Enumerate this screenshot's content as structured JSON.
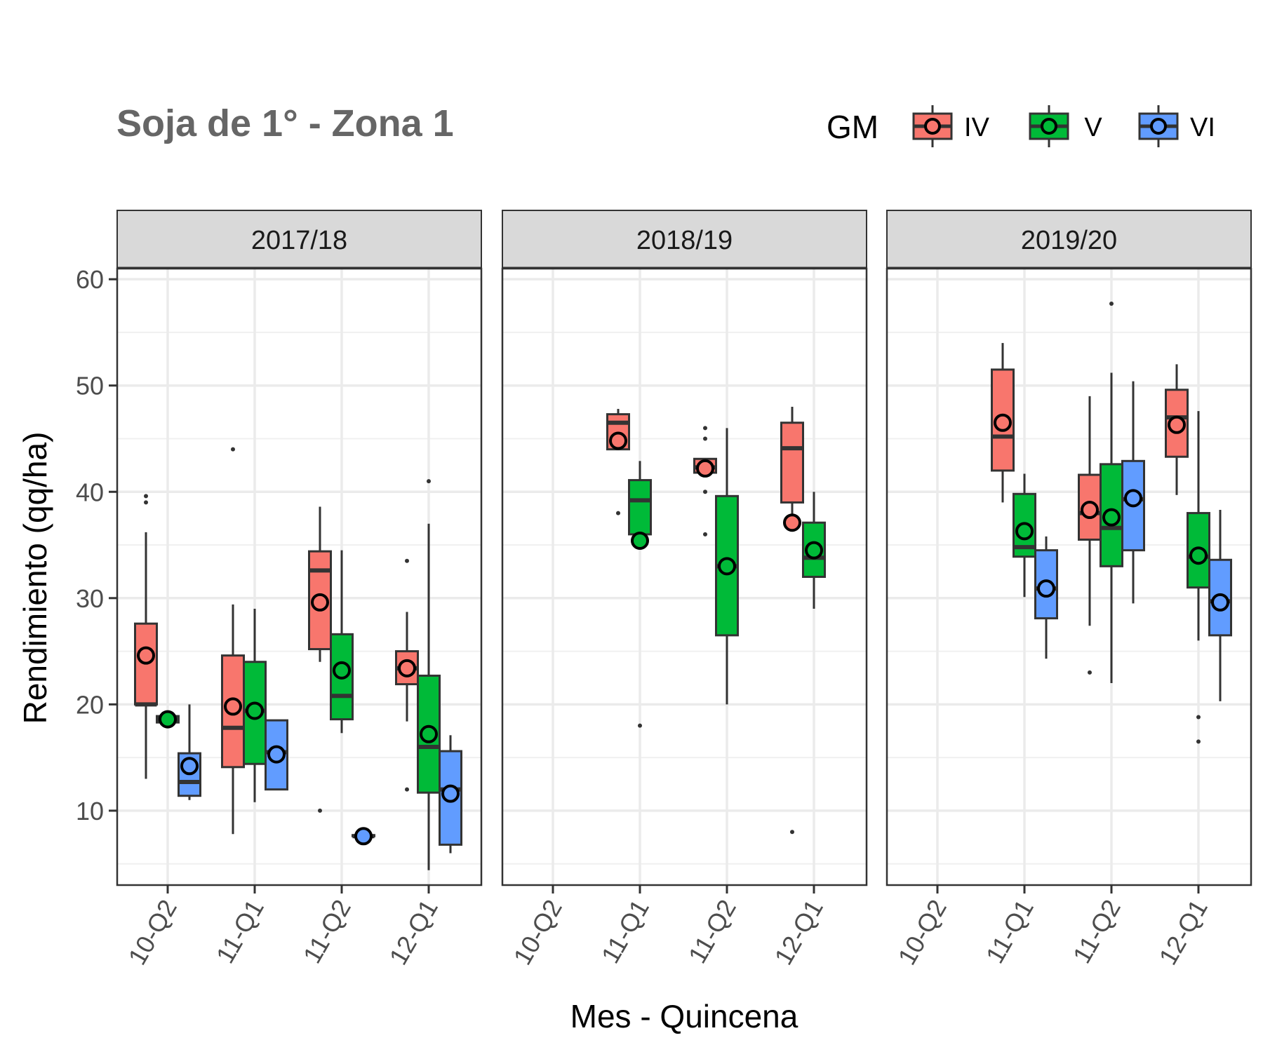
{
  "chart_data": {
    "type": "box",
    "title": "Soja de 1° - Zona 1",
    "xlabel": "Mes - Quincena",
    "ylabel": "Rendimiento (qq/ha)",
    "ylim": [
      3,
      61
    ],
    "yticks": [
      10,
      20,
      30,
      40,
      50,
      60
    ],
    "grid": true,
    "categories": [
      "10-Q2",
      "11-Q1",
      "11-Q2",
      "12-Q1"
    ],
    "legend": {
      "title": "GM",
      "position": "top-right",
      "items": [
        {
          "label": "IV",
          "color": "#F8766D"
        },
        {
          "label": "V",
          "color": "#00BA38"
        },
        {
          "label": "VI",
          "color": "#619CFF"
        }
      ]
    },
    "panels": [
      {
        "label": "2017/18",
        "boxes": [
          {
            "cat": "10-Q2",
            "gm": "IV",
            "min": 13,
            "q1": 20,
            "median": 20,
            "q3": 27.6,
            "max": 36.2,
            "mean": 24.6,
            "outliers": [
              39,
              39.6
            ]
          },
          {
            "cat": "10-Q2",
            "gm": "V",
            "min": 18.3,
            "q1": 18.3,
            "median": 18.6,
            "q3": 18.9,
            "max": 18.9,
            "mean": 18.6,
            "outliers": []
          },
          {
            "cat": "10-Q2",
            "gm": "VI",
            "min": 11,
            "q1": 11.4,
            "median": 12.7,
            "q3": 15.4,
            "max": 20,
            "mean": 14.2,
            "outliers": []
          },
          {
            "cat": "11-Q1",
            "gm": "IV",
            "min": 7.8,
            "q1": 14.1,
            "median": 17.8,
            "q3": 24.6,
            "max": 29.4,
            "mean": 19.8,
            "outliers": [
              44
            ]
          },
          {
            "cat": "11-Q1",
            "gm": "V",
            "min": 10.8,
            "q1": 14.4,
            "median": 19.4,
            "q3": 24,
            "max": 29,
            "mean": 19.4,
            "outliers": []
          },
          {
            "cat": "11-Q1",
            "gm": "VI",
            "min": 12,
            "q1": 12,
            "median": 15.5,
            "q3": 18.5,
            "max": 18.5,
            "mean": 15.3,
            "outliers": []
          },
          {
            "cat": "11-Q2",
            "gm": "IV",
            "min": 24,
            "q1": 25.2,
            "median": 32.6,
            "q3": 34.4,
            "max": 38.6,
            "mean": 29.6,
            "outliers": [
              10
            ]
          },
          {
            "cat": "11-Q2",
            "gm": "V",
            "min": 17.3,
            "q1": 18.6,
            "median": 20.8,
            "q3": 26.6,
            "max": 34.5,
            "mean": 23.2,
            "outliers": []
          },
          {
            "cat": "11-Q2",
            "gm": "VI",
            "min": 7.6,
            "q1": 7.6,
            "median": 7.6,
            "q3": 7.7,
            "max": 7.7,
            "mean": 7.6,
            "outliers": []
          },
          {
            "cat": "12-Q1",
            "gm": "IV",
            "min": 18.4,
            "q1": 21.9,
            "median": 23.4,
            "q3": 25,
            "max": 28.7,
            "mean": 23.4,
            "outliers": [
              12,
              33.5
            ]
          },
          {
            "cat": "12-Q1",
            "gm": "V",
            "min": 4.4,
            "q1": 11.7,
            "median": 16,
            "q3": 22.7,
            "max": 37,
            "mean": 17.2,
            "outliers": [
              41
            ]
          },
          {
            "cat": "12-Q1",
            "gm": "VI",
            "min": 6,
            "q1": 6.8,
            "median": 12,
            "q3": 15.6,
            "max": 17.1,
            "mean": 11.6,
            "outliers": []
          }
        ]
      },
      {
        "label": "2018/19",
        "boxes": [
          {
            "cat": "11-Q1",
            "gm": "IV",
            "min": 44,
            "q1": 44,
            "median": 46.5,
            "q3": 47.3,
            "max": 47.8,
            "mean": 44.8,
            "outliers": [
              38
            ]
          },
          {
            "cat": "11-Q1",
            "gm": "V",
            "min": 35.4,
            "q1": 36,
            "median": 39.2,
            "q3": 41.1,
            "max": 42.9,
            "mean": 35.4,
            "outliers": [
              18
            ]
          },
          {
            "cat": "11-Q2",
            "gm": "IV",
            "min": 41.7,
            "q1": 41.8,
            "median": 42.3,
            "q3": 43.1,
            "max": 43.1,
            "mean": 42.2,
            "outliers": [
              36,
              40,
              45,
              46
            ]
          },
          {
            "cat": "11-Q2",
            "gm": "V",
            "min": 20,
            "q1": 26.5,
            "median": 33,
            "q3": 39.6,
            "max": 46,
            "mean": 33,
            "outliers": []
          },
          {
            "cat": "12-Q1",
            "gm": "IV",
            "min": 37,
            "q1": 39,
            "median": 44.1,
            "q3": 46.5,
            "max": 48,
            "mean": 37.1,
            "outliers": [
              8
            ]
          },
          {
            "cat": "12-Q1",
            "gm": "V",
            "min": 29,
            "q1": 32,
            "median": 33.8,
            "q3": 37.1,
            "max": 40,
            "mean": 34.5,
            "outliers": []
          }
        ]
      },
      {
        "label": "2019/20",
        "boxes": [
          {
            "cat": "11-Q1",
            "gm": "IV",
            "min": 39,
            "q1": 42,
            "median": 45.2,
            "q3": 51.5,
            "max": 54,
            "mean": 46.5,
            "outliers": []
          },
          {
            "cat": "11-Q1",
            "gm": "V",
            "min": 30.1,
            "q1": 33.9,
            "median": 34.8,
            "q3": 39.8,
            "max": 41.7,
            "mean": 36.3,
            "outliers": []
          },
          {
            "cat": "11-Q1",
            "gm": "VI",
            "min": 24.3,
            "q1": 28.1,
            "median": 30.9,
            "q3": 34.5,
            "max": 35.8,
            "mean": 30.9,
            "outliers": []
          },
          {
            "cat": "11-Q2",
            "gm": "IV",
            "min": 27.4,
            "q1": 35.5,
            "median": 38,
            "q3": 41.6,
            "max": 49,
            "mean": 38.3,
            "outliers": [
              23
            ]
          },
          {
            "cat": "11-Q2",
            "gm": "V",
            "min": 22,
            "q1": 33,
            "median": 36.6,
            "q3": 42.6,
            "max": 51.2,
            "mean": 37.6,
            "outliers": [
              57.7
            ]
          },
          {
            "cat": "11-Q2",
            "gm": "VI",
            "min": 29.5,
            "q1": 34.5,
            "median": 39.3,
            "q3": 42.9,
            "max": 50.4,
            "mean": 39.4,
            "outliers": []
          },
          {
            "cat": "12-Q1",
            "gm": "IV",
            "min": 39.7,
            "q1": 43.3,
            "median": 47,
            "q3": 49.6,
            "max": 52,
            "mean": 46.3,
            "outliers": []
          },
          {
            "cat": "12-Q1",
            "gm": "V",
            "min": 26,
            "q1": 31,
            "median": 33.9,
            "q3": 38,
            "max": 47.6,
            "mean": 34,
            "outliers": [
              16.5,
              18.8
            ]
          },
          {
            "cat": "12-Q1",
            "gm": "VI",
            "min": 20.3,
            "q1": 26.5,
            "median": 29.7,
            "q3": 33.6,
            "max": 38.3,
            "mean": 29.6,
            "outliers": []
          }
        ]
      }
    ]
  }
}
